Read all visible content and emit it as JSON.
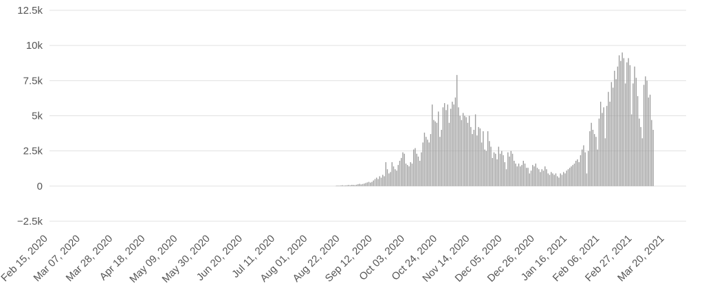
{
  "chart_data": {
    "type": "bar",
    "title": "",
    "xlabel": "",
    "ylabel": "",
    "ylim": [
      -2500,
      12500
    ],
    "grid": true,
    "bar_color": "#9c9c9c",
    "y_ticks": [
      {
        "value": 12500,
        "label": "12.5k"
      },
      {
        "value": 10000,
        "label": "10k"
      },
      {
        "value": 7500,
        "label": "7.5k"
      },
      {
        "value": 5000,
        "label": "5k"
      },
      {
        "value": 2500,
        "label": "2.5k"
      },
      {
        "value": 0,
        "label": "0"
      },
      {
        "value": -2500,
        "label": "−2.5k"
      }
    ],
    "x_ticks": [
      "Feb 15, 2020",
      "Mar 07, 2020",
      "Mar 28, 2020",
      "Apr 18, 2020",
      "May 09, 2020",
      "May 30, 2020",
      "Jun 20, 2020",
      "Jul 11, 2020",
      "Aug 01, 2020",
      "Aug 22, 2020",
      "Sep 12, 2020",
      "Oct 03, 2020",
      "Oct 24, 2020",
      "Nov 14, 2020",
      "Dec 05, 2020",
      "Dec 26, 2020",
      "Jan 16, 2021",
      "Feb 06, 2021",
      "Feb 27, 2021",
      "Mar 20, 2021"
    ],
    "x_start": "2020-02-15",
    "values": [
      0,
      0,
      0,
      0,
      0,
      0,
      0,
      0,
      0,
      0,
      0,
      0,
      0,
      0,
      0,
      0,
      0,
      0,
      0,
      0,
      0,
      0,
      0,
      0,
      0,
      0,
      0,
      0,
      0,
      0,
      0,
      0,
      0,
      0,
      0,
      0,
      0,
      0,
      0,
      0,
      0,
      0,
      0,
      0,
      0,
      0,
      0,
      0,
      0,
      0,
      0,
      0,
      0,
      0,
      0,
      0,
      0,
      0,
      0,
      0,
      0,
      0,
      0,
      0,
      0,
      0,
      0,
      0,
      0,
      0,
      0,
      0,
      0,
      0,
      0,
      0,
      0,
      0,
      0,
      0,
      0,
      0,
      0,
      0,
      0,
      0,
      0,
      0,
      0,
      0,
      0,
      0,
      0,
      0,
      0,
      0,
      0,
      0,
      0,
      0,
      0,
      0,
      0,
      0,
      0,
      0,
      0,
      0,
      0,
      0,
      0,
      0,
      0,
      0,
      0,
      0,
      0,
      0,
      0,
      0,
      0,
      0,
      0,
      0,
      0,
      0,
      0,
      0,
      0,
      0,
      0,
      0,
      0,
      0,
      0,
      0,
      0,
      0,
      0,
      0,
      0,
      0,
      0,
      0,
      0,
      0,
      0,
      0,
      0,
      0,
      0,
      0,
      0,
      0,
      0,
      0,
      0,
      0,
      0,
      0,
      0,
      0,
      0,
      0,
      0,
      0,
      0,
      0,
      0,
      0,
      0,
      0,
      0,
      0,
      0,
      0,
      0,
      0,
      0,
      0,
      0,
      0,
      0,
      30,
      40,
      30,
      50,
      60,
      40,
      50,
      60,
      80,
      60,
      90,
      80,
      70,
      100,
      130,
      160,
      120,
      150,
      180,
      220,
      260,
      300,
      250,
      300,
      400,
      500,
      600,
      500,
      700,
      600,
      800,
      700,
      1700,
      1200,
      900,
      1000,
      1700,
      1400,
      1200,
      1100,
      1500,
      1800,
      2000,
      2400,
      2300,
      1600,
      1500,
      1400,
      1700,
      1600,
      2600,
      2700,
      2300,
      2100,
      1800,
      2400,
      3100,
      3800,
      3500,
      3300,
      3100,
      3700,
      5800,
      4700,
      4600,
      4500,
      5300,
      3500,
      4000,
      5600,
      5900,
      5400,
      5800,
      4500,
      5500,
      6000,
      5800,
      6300,
      7900,
      5600,
      5000,
      4700,
      5200,
      5000,
      4900,
      4500,
      5000,
      4200,
      3700,
      4000,
      5100,
      3600,
      4200,
      4100,
      3100,
      3900,
      2600,
      2500,
      3900,
      3200,
      2800,
      2000,
      2400,
      2300,
      1900,
      2800,
      2300,
      2500,
      2200,
      1700,
      1200,
      2400,
      2100,
      2500,
      2300,
      1800,
      1600,
      1400,
      1600,
      1400,
      1500,
      1800,
      1600,
      1300,
      1300,
      900,
      1100,
      1500,
      1400,
      1600,
      1300,
      1200,
      1000,
      1200,
      1100,
      1400,
      1200,
      900,
      800,
      1000,
      900,
      800,
      900,
      700,
      600,
      900,
      800,
      1000,
      900,
      1100,
      1200,
      1300,
      1400,
      1500,
      1600,
      1800,
      1900,
      1700,
      2200,
      2600,
      2900,
      2400,
      900,
      2500,
      3900,
      4500,
      4000,
      3700,
      3500,
      2600,
      4800,
      6000,
      5200,
      5600,
      3400,
      5700,
      6700,
      6000,
      7400,
      7000,
      8200,
      7600,
      8500,
      9300,
      8900,
      9500,
      9100,
      7300,
      8800,
      9100,
      8600,
      5100,
      7300,
      8500,
      7700,
      6400,
      4800,
      4200,
      3400,
      7200,
      7800,
      7500,
      6300,
      6500,
      4700,
      4000
    ]
  }
}
